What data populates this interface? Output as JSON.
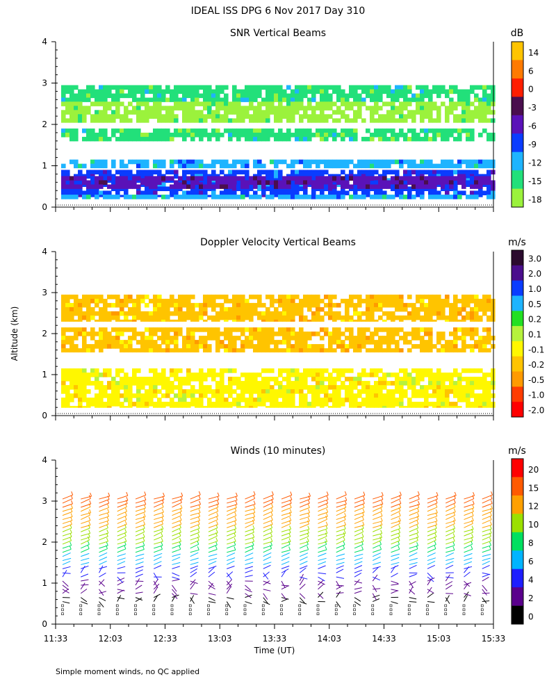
{
  "figure": {
    "title": "IDEAL ISS DPG    6 Nov 2017 Day 310",
    "ylabel": "Altitude (km)",
    "xlabel": "Time (UT)",
    "footnote": "Simple moment winds, no QC applied"
  },
  "chart_data": [
    {
      "type": "heatmap",
      "title": "SNR Vertical Beams",
      "ylim": [
        0,
        4
      ],
      "yticks": [
        "0",
        "1",
        "2",
        "3",
        "4"
      ],
      "xticks": [],
      "x_range": [
        "11:33",
        "15:33"
      ],
      "colorbar": {
        "unit": "dB",
        "labels": [
          "14",
          "6",
          "0",
          "-3",
          "-6",
          "-9",
          "-12",
          "-15",
          "-18"
        ],
        "colors": [
          "#FFC400",
          "#FF7A00",
          "#FF1E00",
          "#4A0E4E",
          "#5A12B8",
          "#0A3CFF",
          "#1EB4FF",
          "#22E07A",
          "#9BF23C"
        ]
      },
      "layers": [
        {
          "altitude_km": [
            2.55,
            2.95
          ],
          "level": "-15"
        },
        {
          "altitude_km": [
            2.05,
            2.55
          ],
          "level": "-18"
        },
        {
          "altitude_km": [
            1.6,
            1.9
          ],
          "level": "-15"
        },
        {
          "altitude_km": [
            0.95,
            1.15
          ],
          "level": "-12"
        },
        {
          "altitude_km": [
            0.25,
            0.9
          ],
          "level": "-9"
        },
        {
          "altitude_km": [
            0.45,
            0.75
          ],
          "level": "-6"
        },
        {
          "altitude_km": [
            0.2,
            0.3
          ],
          "level": "-12"
        }
      ]
    },
    {
      "type": "heatmap",
      "title": "Doppler Velocity Vertical Beams",
      "ylim": [
        0,
        4
      ],
      "yticks": [
        "0",
        "1",
        "2",
        "3",
        "4"
      ],
      "xticks": [],
      "x_range": [
        "11:33",
        "15:33"
      ],
      "colorbar": {
        "unit": "m/s",
        "labels": [
          "3.0",
          "2.0",
          "1.0",
          "0.5",
          "0.2",
          "0.1",
          "-0.1",
          "-0.2",
          "-0.5",
          "-1.0",
          "-2.0"
        ],
        "colors": [
          "#2B0A2E",
          "#4A0E8C",
          "#0A3CFF",
          "#1EB4FF",
          "#22E022",
          "#B6F23C",
          "#FFF700",
          "#FFC400",
          "#FF9A00",
          "#FF3C00",
          "#FF0000"
        ]
      },
      "layers": [
        {
          "altitude_km": [
            2.3,
            2.95
          ],
          "level": "-0.2"
        },
        {
          "altitude_km": [
            1.55,
            2.15
          ],
          "level": "-0.2"
        },
        {
          "altitude_km": [
            0.2,
            1.15
          ],
          "level": "-0.1"
        }
      ]
    },
    {
      "type": "barbs",
      "title": "Winds (10 minutes)",
      "ylim": [
        0,
        4
      ],
      "yticks": [
        "0",
        "1",
        "2",
        "3",
        "4"
      ],
      "xticks": [
        "11:33",
        "12:03",
        "12:33",
        "13:03",
        "13:33",
        "14:03",
        "14:33",
        "15:03",
        "15:33"
      ],
      "x_range": [
        "11:33",
        "15:33"
      ],
      "profile_times": [
        "11:33",
        "11:43",
        "11:53",
        "12:03",
        "12:13",
        "12:23",
        "12:33",
        "12:43",
        "12:53",
        "13:03",
        "13:13",
        "13:23",
        "13:33",
        "13:43",
        "13:53",
        "14:03",
        "14:13",
        "14:23",
        "14:33",
        "14:43",
        "14:53",
        "15:03",
        "15:13",
        "15:23"
      ],
      "colorbar": {
        "unit": "m/s",
        "labels": [
          "20",
          "15",
          "12",
          "10",
          "8",
          "6",
          "4",
          "2",
          "0"
        ],
        "colors": [
          "#FF0000",
          "#FF5A00",
          "#FFA000",
          "#9BE000",
          "#00E060",
          "#00B4FF",
          "#1E1EFF",
          "#5A008C",
          "#000000"
        ]
      },
      "speed_profile": [
        {
          "altitude_km": 3.1,
          "speed_ms": 17
        },
        {
          "altitude_km": 2.5,
          "speed_ms": 13
        },
        {
          "altitude_km": 1.9,
          "speed_ms": 10
        },
        {
          "altitude_km": 1.3,
          "speed_ms": 5
        },
        {
          "altitude_km": 0.9,
          "speed_ms": 3
        },
        {
          "altitude_km": 0.5,
          "speed_ms": 1
        }
      ]
    }
  ]
}
